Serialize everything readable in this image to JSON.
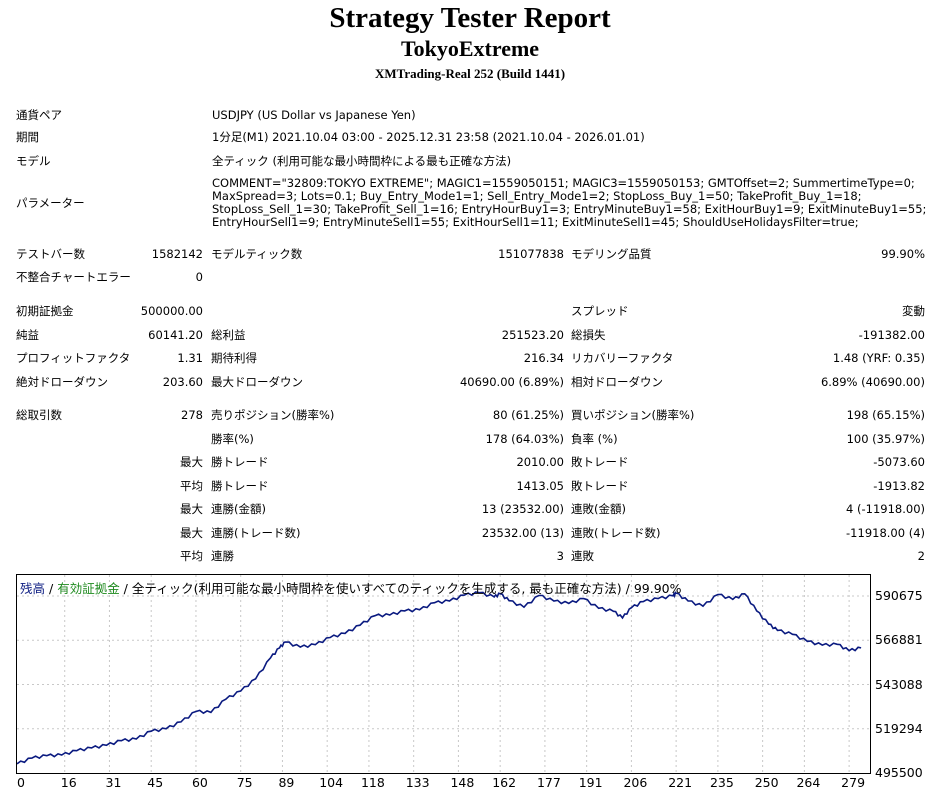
{
  "header": {
    "title": "Strategy Tester Report",
    "expert": "TokyoExtreme",
    "server": "XMTrading-Real 252 (Build 1441)"
  },
  "info": {
    "symbol_label": "通貨ペア",
    "symbol_value": "USDJPY (US Dollar vs Japanese Yen)",
    "period_label": "期間",
    "period_value": "1分足(M1) 2021.10.04 03:00 - 2025.12.31 23:58 (2021.10.04 - 2026.01.01)",
    "model_label": "モデル",
    "model_value": "全ティック (利用可能な最小時間枠による最も正確な方法)",
    "params_label": "パラメーター",
    "params_lines": [
      "COMMENT=\"32809:TOKYO EXTREME\"; MAGIC1=1559050151; MAGIC3=1559050153; GMTOffset=2; SummertimeType=0;",
      "MaxSpread=3; Lots=0.1; Buy_Entry_Mode1=1; Sell_Entry_Mode1=2; StopLoss_Buy_1=50; TakeProfit_Buy_1=18;",
      "StopLoss_Sell_1=30; TakeProfit_Sell_1=16; EntryHourBuy1=3; EntryMinuteBuy1=58; ExitHourBuy1=9; ExitMinuteBuy1=55;",
      "EntryHourSell1=9; EntryMinuteSell1=55; ExitHourSell1=11; ExitMinuteSell1=45; ShouldUseHolidaysFilter=true;"
    ]
  },
  "stats": {
    "bars_label": "テストバー数",
    "bars_value": "1582142",
    "ticks_label": "モデルティック数",
    "ticks_value": "151077838",
    "quality_label": "モデリング品質",
    "quality_value": "99.90%",
    "mismatch_label": "不整合チャートエラー",
    "mismatch_value": "0",
    "deposit_label": "初期証拠金",
    "deposit_value": "500000.00",
    "spread_label": "スプレッド",
    "spread_value": "変動",
    "net_label": "純益",
    "net_value": "60141.20",
    "gross_profit_label": "総利益",
    "gross_profit_value": "251523.20",
    "gross_loss_label": "総損失",
    "gross_loss_value": "-191382.00",
    "pf_label": "プロフィットファクタ",
    "pf_value": "1.31",
    "payoff_label": "期待利得",
    "payoff_value": "216.34",
    "rf_label": "リカバリーファクタ",
    "rf_value": "1.48 (YRF: 0.35)",
    "abs_dd_label": "絶対ドローダウン",
    "abs_dd_value": "203.60",
    "max_dd_label": "最大ドローダウン",
    "max_dd_value": "40690.00 (6.89%)",
    "rel_dd_label": "相対ドローダウン",
    "rel_dd_value": "6.89% (40690.00)",
    "trades_label": "総取引数",
    "trades_value": "278",
    "short_label": "売りポジション(勝率%)",
    "short_value": "80 (61.25%)",
    "long_label": "買いポジション(勝率%)",
    "long_value": "198 (65.15%)",
    "win_label": "勝率(%)",
    "win_value": "178 (64.03%)",
    "loss_label": "負率 (%)",
    "loss_value": "100 (35.97%)",
    "max_prefix": "最大",
    "avg_prefix": "平均",
    "largest_win_label": "勝トレード",
    "largest_win_value": "2010.00",
    "largest_loss_label": "敗トレード",
    "largest_loss_value": "-5073.60",
    "avg_win_label": "勝トレード",
    "avg_win_value": "1413.05",
    "avg_loss_label": "敗トレード",
    "avg_loss_value": "-1913.82",
    "cons_win_money_label": "連勝(金額)",
    "cons_win_money_value": "13 (23532.00)",
    "cons_loss_money_label": "連敗(金額)",
    "cons_loss_money_value": "4 (-11918.00)",
    "cons_win_trades_label": "連勝(トレード数)",
    "cons_win_trades_value": "23532.00 (13)",
    "cons_loss_trades_label": "連敗(トレード数)",
    "cons_loss_trades_value": "-11918.00 (4)",
    "avg_cons_win_label": "連勝",
    "avg_cons_win_value": "3",
    "avg_cons_loss_label": "連敗",
    "avg_cons_loss_value": "2"
  },
  "chart_legend": {
    "balance": "残高",
    "sep1": " / ",
    "equity": "有効証拠金",
    "rest": " / 全ティック(利用可能な最小時間枠を使いすべてのティックを生成する, 最も正確な方法) / 99.90%"
  },
  "chart_data": {
    "type": "line",
    "title": "",
    "xlabel": "",
    "ylabel": "",
    "xlim": [
      0,
      286
    ],
    "ylim": [
      495500,
      602000
    ],
    "x_ticks": [
      "0",
      "16",
      "31",
      "45",
      "60",
      "75",
      "89",
      "104",
      "118",
      "133",
      "148",
      "162",
      "177",
      "191",
      "206",
      "221",
      "235",
      "250",
      "264",
      "279"
    ],
    "y_ticks": [
      "590675",
      "566881",
      "543088",
      "519294",
      "495500"
    ],
    "series": [
      {
        "color": "#0a1a80",
        "x": [
          0,
          5,
          10,
          15,
          20,
          25,
          30,
          35,
          40,
          45,
          50,
          55,
          60,
          65,
          70,
          75,
          80,
          85,
          88,
          90,
          95,
          100,
          105,
          110,
          115,
          120,
          125,
          130,
          135,
          140,
          145,
          150,
          155,
          160,
          162,
          165,
          170,
          175,
          180,
          185,
          190,
          195,
          200,
          203,
          206,
          210,
          215,
          220,
          221,
          225,
          230,
          235,
          240,
          244,
          248,
          252,
          255,
          260,
          265,
          270,
          275,
          279,
          283
        ],
        "y": [
          500400,
          503500,
          504800,
          505200,
          507500,
          509000,
          510400,
          512900,
          513800,
          518000,
          519300,
          523000,
          528600,
          528100,
          535200,
          539600,
          546100,
          557400,
          562800,
          565900,
          563200,
          564500,
          568400,
          570600,
          575000,
          580100,
          580500,
          582700,
          583300,
          587100,
          588000,
          591200,
          592500,
          590200,
          591900,
          588200,
          584700,
          591000,
          588000,
          586700,
          589300,
          584100,
          582500,
          578900,
          584400,
          587700,
          589300,
          590800,
          592200,
          588000,
          585200,
          591500,
          588900,
          591900,
          582700,
          575600,
          572200,
          570100,
          566300,
          564300,
          564700,
          561300,
          562800
        ]
      }
    ]
  }
}
